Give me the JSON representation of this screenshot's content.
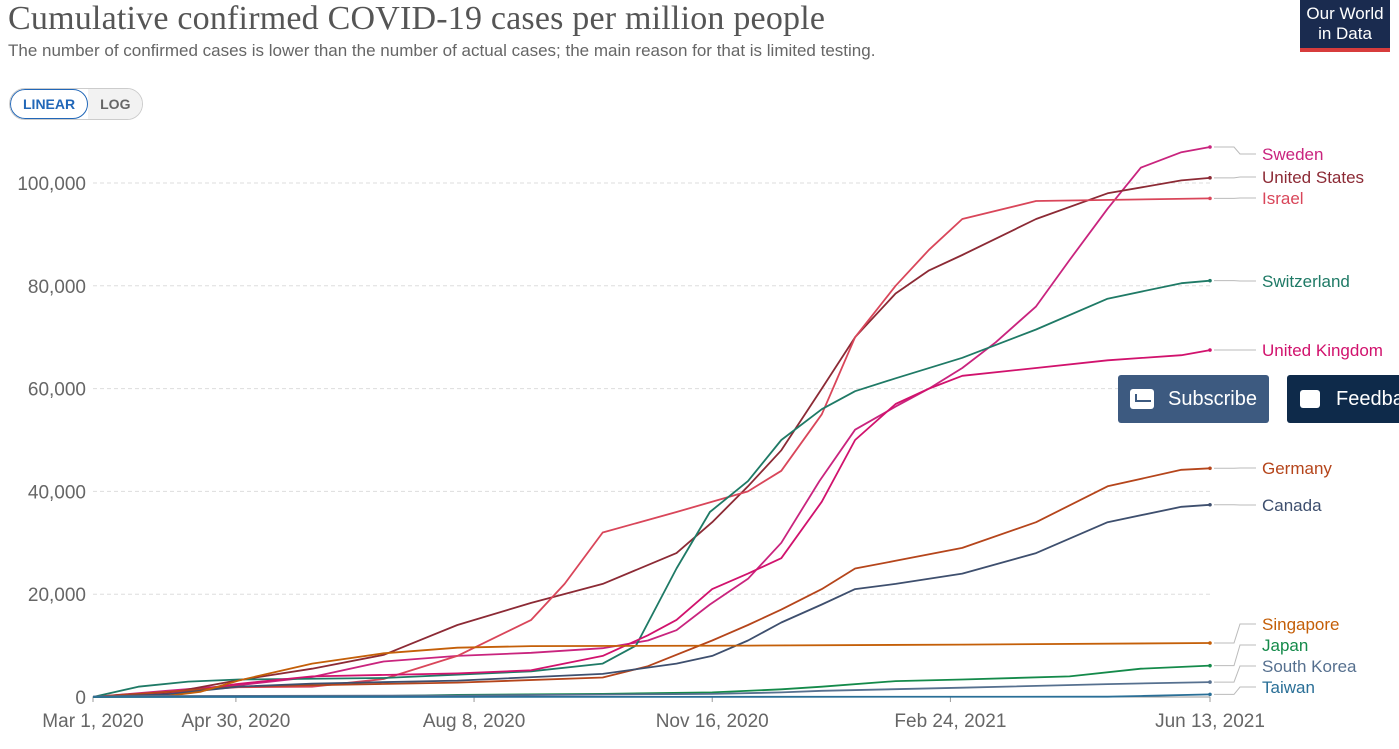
{
  "header": {
    "title": "Cumulative confirmed COVID-19 cases per million people",
    "subtitle": "The number of confirmed cases is lower than the number of actual cases; the main reason for that is limited testing.",
    "logo_line1": "Our World",
    "logo_line2": "in Data"
  },
  "scale_toggle": {
    "linear_label": "LINEAR",
    "log_label": "LOG",
    "selected": "LINEAR"
  },
  "buttons": {
    "subscribe_label": "Subscribe",
    "feedback_label": "Feedba"
  },
  "chart_data": {
    "type": "line",
    "title": "Cumulative confirmed COVID-19 cases per million people",
    "xlabel": "",
    "ylabel": "",
    "x_tick_labels": [
      "Mar 1, 2020",
      "Apr 30, 2020",
      "Aug 8, 2020",
      "Nov 16, 2020",
      "Feb 24, 2021",
      "Jun 13, 2021"
    ],
    "x_tick_dates": [
      "2020-03-01",
      "2020-04-30",
      "2020-08-08",
      "2020-11-16",
      "2021-02-24",
      "2021-06-13"
    ],
    "y_ticks": [
      0,
      20000,
      40000,
      60000,
      80000,
      100000
    ],
    "y_tick_labels": [
      "0",
      "20,000",
      "40,000",
      "60,000",
      "80,000",
      "100,000"
    ],
    "xlim": [
      "2020-03-01",
      "2021-06-13"
    ],
    "ylim": [
      0,
      109000
    ],
    "grid": "horizontal dashed",
    "legend": "right, labels at line ends",
    "series": [
      {
        "name": "Sweden",
        "color": "#c9247e",
        "points": [
          [
            "2020-03-01",
            0
          ],
          [
            "2020-04-01",
            1200
          ],
          [
            "2020-05-01",
            2300
          ],
          [
            "2020-06-01",
            3900
          ],
          [
            "2020-07-01",
            6900
          ],
          [
            "2020-08-01",
            8000
          ],
          [
            "2020-09-01",
            8600
          ],
          [
            "2020-10-01",
            9500
          ],
          [
            "2020-10-20",
            11000
          ],
          [
            "2020-11-01",
            13000
          ],
          [
            "2020-11-15",
            18000
          ],
          [
            "2020-12-01",
            23000
          ],
          [
            "2020-12-15",
            30000
          ],
          [
            "2020-12-31",
            42000
          ],
          [
            "2021-01-15",
            52000
          ],
          [
            "2021-02-01",
            56500
          ],
          [
            "2021-02-15",
            60000
          ],
          [
            "2021-03-01",
            64000
          ],
          [
            "2021-03-15",
            69000
          ],
          [
            "2021-04-01",
            76000
          ],
          [
            "2021-04-15",
            85000
          ],
          [
            "2021-05-01",
            95000
          ],
          [
            "2021-05-15",
            103000
          ],
          [
            "2021-06-01",
            106000
          ],
          [
            "2021-06-13",
            107000
          ]
        ]
      },
      {
        "name": "United States",
        "color": "#8c2a35",
        "points": [
          [
            "2020-03-01",
            0
          ],
          [
            "2020-03-15",
            500
          ],
          [
            "2020-04-01",
            700
          ],
          [
            "2020-04-30",
            3200
          ],
          [
            "2020-06-01",
            5500
          ],
          [
            "2020-07-01",
            8200
          ],
          [
            "2020-08-01",
            14000
          ],
          [
            "2020-09-01",
            18300
          ],
          [
            "2020-10-01",
            22000
          ],
          [
            "2020-11-01",
            28000
          ],
          [
            "2020-11-16",
            34000
          ],
          [
            "2020-12-01",
            41000
          ],
          [
            "2020-12-15",
            48000
          ],
          [
            "2021-01-01",
            60000
          ],
          [
            "2021-01-15",
            70000
          ],
          [
            "2021-02-01",
            78500
          ],
          [
            "2021-02-15",
            83000
          ],
          [
            "2021-03-01",
            86000
          ],
          [
            "2021-04-01",
            93000
          ],
          [
            "2021-05-01",
            98000
          ],
          [
            "2021-06-01",
            100500
          ],
          [
            "2021-06-13",
            101000
          ]
        ]
      },
      {
        "name": "Israel",
        "color": "#d9465a",
        "points": [
          [
            "2020-03-01",
            0
          ],
          [
            "2020-04-01",
            1000
          ],
          [
            "2020-05-01",
            1900
          ],
          [
            "2020-06-01",
            2000
          ],
          [
            "2020-07-01",
            3500
          ],
          [
            "2020-08-01",
            8000
          ],
          [
            "2020-09-01",
            15000
          ],
          [
            "2020-09-15",
            22000
          ],
          [
            "2020-10-01",
            32000
          ],
          [
            "2020-11-01",
            36000
          ],
          [
            "2020-12-01",
            40000
          ],
          [
            "2020-12-15",
            44000
          ],
          [
            "2021-01-01",
            55000
          ],
          [
            "2021-01-15",
            70000
          ],
          [
            "2021-02-01",
            80000
          ],
          [
            "2021-02-15",
            87000
          ],
          [
            "2021-03-01",
            93000
          ],
          [
            "2021-04-01",
            96500
          ],
          [
            "2021-06-13",
            97000
          ]
        ]
      },
      {
        "name": "Switzerland",
        "color": "#1f7a66",
        "points": [
          [
            "2020-03-01",
            0
          ],
          [
            "2020-03-20",
            2000
          ],
          [
            "2020-04-10",
            3000
          ],
          [
            "2020-05-01",
            3400
          ],
          [
            "2020-07-01",
            3700
          ],
          [
            "2020-09-01",
            5000
          ],
          [
            "2020-10-01",
            6500
          ],
          [
            "2020-10-15",
            10000
          ],
          [
            "2020-11-01",
            25000
          ],
          [
            "2020-11-15",
            36000
          ],
          [
            "2020-12-01",
            42000
          ],
          [
            "2020-12-15",
            50000
          ],
          [
            "2021-01-01",
            56000
          ],
          [
            "2021-01-15",
            59500
          ],
          [
            "2021-02-01",
            62000
          ],
          [
            "2021-03-01",
            66000
          ],
          [
            "2021-04-01",
            71500
          ],
          [
            "2021-05-01",
            77500
          ],
          [
            "2021-06-01",
            80500
          ],
          [
            "2021-06-13",
            81000
          ]
        ]
      },
      {
        "name": "United Kingdom",
        "color": "#d1126d",
        "points": [
          [
            "2020-03-01",
            0
          ],
          [
            "2020-04-01",
            500
          ],
          [
            "2020-04-30",
            2500
          ],
          [
            "2020-06-01",
            4000
          ],
          [
            "2020-08-01",
            4600
          ],
          [
            "2020-09-01",
            5200
          ],
          [
            "2020-10-01",
            8000
          ],
          [
            "2020-10-20",
            12000
          ],
          [
            "2020-11-01",
            15000
          ],
          [
            "2020-11-16",
            21000
          ],
          [
            "2020-12-01",
            24000
          ],
          [
            "2020-12-15",
            27000
          ],
          [
            "2021-01-01",
            38000
          ],
          [
            "2021-01-15",
            50000
          ],
          [
            "2021-02-01",
            57000
          ],
          [
            "2021-02-15",
            60000
          ],
          [
            "2021-03-01",
            62500
          ],
          [
            "2021-04-01",
            64000
          ],
          [
            "2021-05-01",
            65500
          ],
          [
            "2021-06-01",
            66500
          ],
          [
            "2021-06-13",
            67500
          ]
        ]
      },
      {
        "name": "Germany",
        "color": "#b5451b",
        "points": [
          [
            "2020-03-01",
            0
          ],
          [
            "2020-04-01",
            1000
          ],
          [
            "2020-04-30",
            2000
          ],
          [
            "2020-06-01",
            2300
          ],
          [
            "2020-08-01",
            2800
          ],
          [
            "2020-10-01",
            3800
          ],
          [
            "2020-10-20",
            6000
          ],
          [
            "2020-11-16",
            11000
          ],
          [
            "2020-12-01",
            14000
          ],
          [
            "2020-12-15",
            17000
          ],
          [
            "2021-01-01",
            21000
          ],
          [
            "2021-01-15",
            25000
          ],
          [
            "2021-02-01",
            26500
          ],
          [
            "2021-03-01",
            29000
          ],
          [
            "2021-04-01",
            34000
          ],
          [
            "2021-05-01",
            41000
          ],
          [
            "2021-06-01",
            44200
          ],
          [
            "2021-06-13",
            44500
          ]
        ]
      },
      {
        "name": "Canada",
        "color": "#3e4f6e",
        "points": [
          [
            "2020-03-01",
            0
          ],
          [
            "2020-04-01",
            500
          ],
          [
            "2020-05-01",
            2000
          ],
          [
            "2020-06-01",
            2600
          ],
          [
            "2020-08-01",
            3200
          ],
          [
            "2020-10-01",
            4500
          ],
          [
            "2020-11-01",
            6500
          ],
          [
            "2020-11-16",
            8000
          ],
          [
            "2020-12-01",
            11000
          ],
          [
            "2020-12-15",
            14500
          ],
          [
            "2021-01-01",
            18000
          ],
          [
            "2021-01-15",
            21000
          ],
          [
            "2021-02-01",
            22000
          ],
          [
            "2021-03-01",
            24000
          ],
          [
            "2021-04-01",
            28000
          ],
          [
            "2021-05-01",
            34000
          ],
          [
            "2021-06-01",
            37000
          ],
          [
            "2021-06-13",
            37400
          ]
        ]
      },
      {
        "name": "Singapore",
        "color": "#c45f08",
        "points": [
          [
            "2020-03-01",
            0
          ],
          [
            "2020-04-01",
            200
          ],
          [
            "2020-04-15",
            1000
          ],
          [
            "2020-05-01",
            3200
          ],
          [
            "2020-06-01",
            6500
          ],
          [
            "2020-07-01",
            8500
          ],
          [
            "2020-08-01",
            9600
          ],
          [
            "2020-09-01",
            9900
          ],
          [
            "2020-12-01",
            10000
          ],
          [
            "2021-03-01",
            10200
          ],
          [
            "2021-06-13",
            10500
          ]
        ]
      },
      {
        "name": "Japan",
        "color": "#148a4a",
        "points": [
          [
            "2020-03-01",
            0
          ],
          [
            "2020-07-01",
            200
          ],
          [
            "2020-08-01",
            400
          ],
          [
            "2020-10-01",
            600
          ],
          [
            "2020-11-16",
            900
          ],
          [
            "2020-12-15",
            1500
          ],
          [
            "2021-01-01",
            2000
          ],
          [
            "2021-02-01",
            3100
          ],
          [
            "2021-03-01",
            3400
          ],
          [
            "2021-04-15",
            4000
          ],
          [
            "2021-05-15",
            5500
          ],
          [
            "2021-06-13",
            6100
          ]
        ]
      },
      {
        "name": "South Korea",
        "color": "#56708f",
        "points": [
          [
            "2020-03-01",
            100
          ],
          [
            "2020-04-01",
            200
          ],
          [
            "2020-08-01",
            300
          ],
          [
            "2020-11-16",
            600
          ],
          [
            "2020-12-15",
            900
          ],
          [
            "2021-01-01",
            1200
          ],
          [
            "2021-03-01",
            1800
          ],
          [
            "2021-05-01",
            2500
          ],
          [
            "2021-06-13",
            2900
          ]
        ]
      },
      {
        "name": "Taiwan",
        "color": "#2a6f97",
        "points": [
          [
            "2020-03-01",
            0
          ],
          [
            "2021-05-01",
            50
          ],
          [
            "2021-05-15",
            200
          ],
          [
            "2021-06-13",
            500
          ]
        ]
      }
    ]
  }
}
